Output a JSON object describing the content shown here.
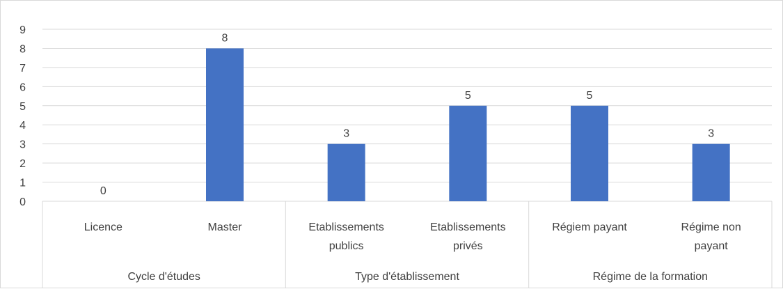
{
  "chart_data": {
    "type": "bar",
    "categories": [
      [
        "Licence"
      ],
      [
        "Master"
      ],
      [
        "Etablissements",
        "publics"
      ],
      [
        "Etablissements",
        "privés"
      ],
      [
        "Régiem payant"
      ],
      [
        "Régime non",
        "payant"
      ]
    ],
    "groups": [
      {
        "label": "Cycle d'études",
        "count": 2
      },
      {
        "label": "Type d'établissement",
        "count": 2
      },
      {
        "label": "Régime de la formation",
        "count": 2
      }
    ],
    "values": [
      0,
      8,
      3,
      5,
      5,
      3
    ],
    "data_labels": [
      "0",
      "8",
      "3",
      "5",
      "5",
      "3"
    ],
    "ylim": [
      0,
      9
    ],
    "yticks": [
      "0",
      "1",
      "2",
      "3",
      "4",
      "5",
      "6",
      "7",
      "8",
      "9"
    ],
    "grid": true,
    "legend": "none",
    "colors": {
      "bar": "#4472C4",
      "grid": "#d9d9d9",
      "text": "#404040"
    }
  }
}
